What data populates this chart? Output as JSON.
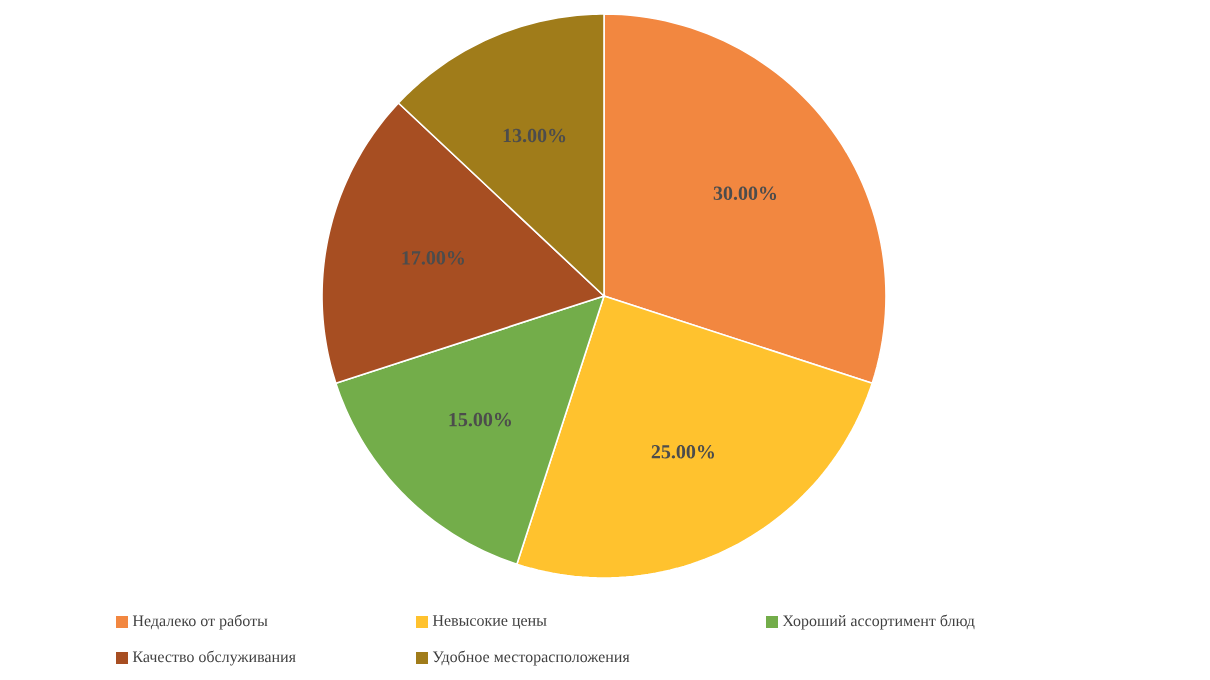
{
  "chart_data": {
    "type": "pie",
    "categories": [
      "Недалеко от работы",
      "Невысокие цены",
      "Хороший ассортимент блюд",
      "Качество обслуживания",
      "Удобное месторасположения"
    ],
    "values": [
      30,
      25,
      15,
      17,
      13
    ],
    "value_labels": [
      "30.00%",
      "25.00%",
      "15.00%",
      "17.00%",
      "13.00%"
    ],
    "colors": [
      "#f28740",
      "#ffc22e",
      "#73ad4a",
      "#a74e22",
      "#a07c1a"
    ],
    "legend": "bottom"
  }
}
